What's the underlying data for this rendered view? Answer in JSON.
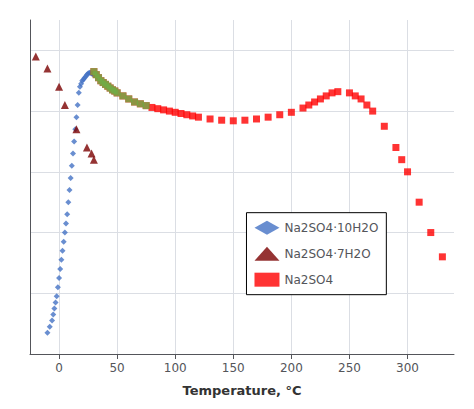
{
  "chart_data": {
    "type": "scatter",
    "xlabel": "Temperature, °C",
    "xlim": [
      -25,
      340
    ],
    "ylim": [
      0,
      55
    ],
    "xticks": [
      0,
      50,
      100,
      150,
      200,
      250,
      300
    ],
    "yticks": [
      0,
      10,
      20,
      30,
      40,
      50
    ],
    "tick_labels": "x",
    "grid": true,
    "legend": "center",
    "series": [
      {
        "name": "Na2SO4·10H2O",
        "color": "#4472C4",
        "marker": "diamond",
        "x": [
          -10,
          -8,
          -6,
          -5,
          -4,
          -3,
          -2,
          -1,
          0,
          1,
          2,
          3,
          4,
          5,
          6,
          7,
          8,
          9,
          10,
          11,
          12,
          13,
          14,
          15,
          16,
          17,
          18,
          19,
          20,
          21,
          22,
          23,
          24,
          25,
          26,
          27,
          28,
          29,
          30,
          31,
          32
        ],
        "values": [
          3.5,
          4.5,
          5.5,
          6.5,
          7.5,
          8.5,
          9.5,
          11,
          12.5,
          14,
          15.5,
          17,
          18.5,
          20,
          21.5,
          23,
          25,
          27,
          29,
          31,
          33,
          35,
          37,
          39,
          41,
          43,
          44,
          44.5,
          45,
          45.2,
          45.5,
          45.7,
          46,
          46.2,
          46.3,
          46.3,
          46.2,
          46.1,
          46.0,
          45.9,
          45.8
        ]
      },
      {
        "name": "Na2SO4·7H2O",
        "color": "#7B0000",
        "marker": "triangle",
        "x": [
          -20,
          -10,
          0,
          5,
          15,
          24,
          28,
          30
        ],
        "values": [
          49,
          47,
          44,
          41,
          37,
          34,
          33,
          32
        ]
      },
      {
        "name": "Na2SO4",
        "color": "#FF0000",
        "marker": "square",
        "x": [
          30,
          32,
          34,
          36,
          38,
          40,
          42,
          44,
          46,
          48,
          50,
          55,
          60,
          65,
          70,
          75,
          80,
          85,
          90,
          95,
          100,
          105,
          110,
          115,
          120,
          130,
          140,
          150,
          160,
          170,
          180,
          190,
          200,
          210,
          215,
          220,
          225,
          230,
          235,
          240,
          250,
          255,
          260,
          265,
          270,
          280,
          290,
          295,
          300,
          310,
          320,
          330
        ],
        "values": [
          46.5,
          46.0,
          45.5,
          45.0,
          44.7,
          44.4,
          44.1,
          43.8,
          43.5,
          43.3,
          43.0,
          42.5,
          42.0,
          41.5,
          41.2,
          40.9,
          40.6,
          40.4,
          40.2,
          40.0,
          39.8,
          39.6,
          39.4,
          39.2,
          39.0,
          38.7,
          38.5,
          38.4,
          38.5,
          38.7,
          39.0,
          39.4,
          39.8,
          40.5,
          41.0,
          41.5,
          42.0,
          42.5,
          43.0,
          43.2,
          43.0,
          42.5,
          42.0,
          41.0,
          40.0,
          37.5,
          34.0,
          32.0,
          30.0,
          25.0,
          20.0,
          16.0
        ]
      },
      {
        "color": "#70AD47",
        "marker": "square",
        "x": [
          30,
          32,
          34,
          36,
          38,
          40,
          42,
          44,
          46,
          48,
          50,
          55,
          60,
          65,
          70,
          75
        ],
        "values": [
          46.5,
          46.0,
          45.5,
          45.0,
          44.7,
          44.4,
          44.1,
          43.8,
          43.5,
          43.3,
          43.0,
          42.5,
          42.0,
          41.5,
          41.2,
          40.9
        ]
      }
    ]
  }
}
